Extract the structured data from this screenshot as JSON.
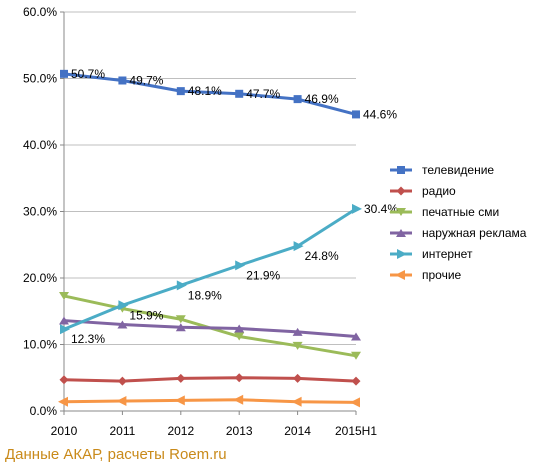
{
  "chart_data": {
    "type": "line",
    "title": "",
    "xlabel": "",
    "ylabel": "",
    "categories": [
      "2010",
      "2011",
      "2012",
      "2013",
      "2014",
      "2015H1"
    ],
    "ylim": [
      0,
      60
    ],
    "yticks": [
      "0.0%",
      "10.0%",
      "20.0%",
      "30.0%",
      "40.0%",
      "50.0%",
      "60.0%"
    ],
    "grid": "horizontal",
    "legend_position": "right",
    "series": [
      {
        "name": "телевидение",
        "color": "#4472c4",
        "marker": "square",
        "values": [
          50.7,
          49.7,
          48.1,
          47.7,
          46.9,
          44.6
        ],
        "labels": [
          "50.7%",
          "49.7%",
          "48.1%",
          "47.7%",
          "46.9%",
          "44.6%"
        ]
      },
      {
        "name": "радио",
        "color": "#c0504d",
        "marker": "diamond",
        "values": [
          4.7,
          4.5,
          4.9,
          5.0,
          4.9,
          4.5
        ],
        "labels": []
      },
      {
        "name": "печатные сми",
        "color": "#9bbb59",
        "marker": "triangle-down",
        "values": [
          17.3,
          15.4,
          13.8,
          11.2,
          9.8,
          8.3
        ],
        "labels": []
      },
      {
        "name": "наружная реклама",
        "color": "#8064a2",
        "marker": "triangle-up",
        "values": [
          13.6,
          13.0,
          12.6,
          12.4,
          11.9,
          11.2
        ],
        "labels": []
      },
      {
        "name": "интернет",
        "color": "#4bacc6",
        "marker": "arrow-right",
        "values": [
          12.3,
          15.9,
          18.9,
          21.9,
          24.8,
          30.4
        ],
        "labels": [
          "12.3%",
          "15.9%",
          "18.9%",
          "21.9%",
          "24.8%",
          "30.4%"
        ]
      },
      {
        "name": "прочие",
        "color": "#f79646",
        "marker": "arrow-left",
        "values": [
          1.4,
          1.5,
          1.6,
          1.7,
          1.4,
          1.3
        ],
        "labels": []
      }
    ]
  },
  "source": "Данные АКАР, расчеты Roem.ru"
}
